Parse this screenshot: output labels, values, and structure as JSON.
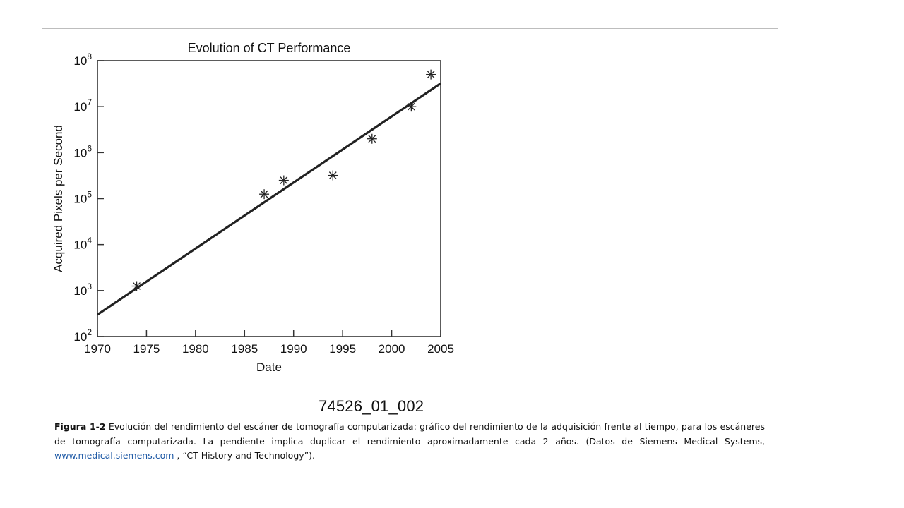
{
  "chart_data": {
    "type": "scatter",
    "title": "Evolution of CT Performance",
    "xlabel": "Date",
    "ylabel": "Acquired Pixels per Second",
    "xlim": [
      1970,
      2005
    ],
    "ylim": [
      100,
      100000000
    ],
    "y_scale": "log",
    "x_ticks": [
      1970,
      1975,
      1980,
      1985,
      1990,
      1995,
      2000,
      2005
    ],
    "y_ticks": [
      {
        "value": 100,
        "base": "10",
        "exp": "2"
      },
      {
        "value": 1000,
        "base": "10",
        "exp": "3"
      },
      {
        "value": 10000,
        "base": "10",
        "exp": "4"
      },
      {
        "value": 100000,
        "base": "10",
        "exp": "5"
      },
      {
        "value": 1000000,
        "base": "10",
        "exp": "6"
      },
      {
        "value": 10000000,
        "base": "10",
        "exp": "7"
      },
      {
        "value": 100000000,
        "base": "10",
        "exp": "8"
      }
    ],
    "series": [
      {
        "marker": "asterisk",
        "x": [
          1974,
          1987,
          1989,
          1994,
          1998,
          2002,
          2004
        ],
        "y": [
          1250,
          125000,
          250000,
          320000,
          2000000,
          10000000,
          50000000
        ]
      }
    ],
    "trend_line": {
      "x": [
        1970,
        2005
      ],
      "y": [
        300,
        32000000
      ]
    },
    "grid": false,
    "legend": "none"
  },
  "figure_code": "74526_01_002",
  "caption": {
    "label": "Figura 1-2",
    "text": " Evolución del rendimiento del escáner de tomografía computarizada: gráfico del rendimiento de la adquisición frente al tiempo, para los escáneres de tomografía computarizada. La pendiente implica duplicar el rendimiento aproximadamente cada 2 años. (Datos de Siemens Medical Systems, ",
    "link": "www.medical.siemens.com",
    "tail": " , “CT History and Technology”)."
  }
}
